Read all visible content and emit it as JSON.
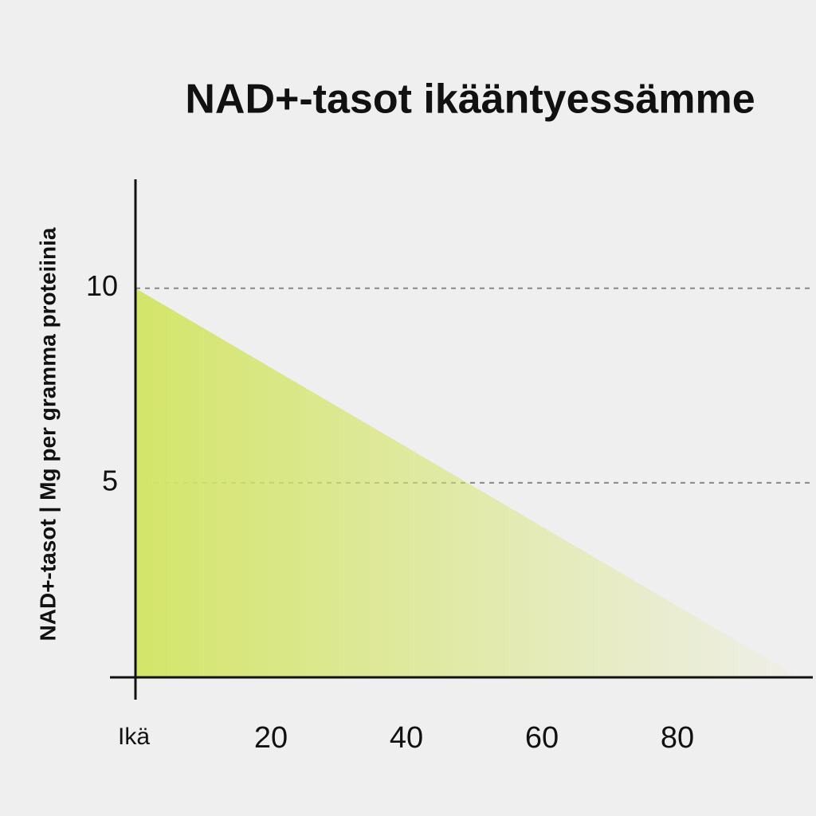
{
  "chart_data": {
    "type": "area",
    "title": "NAD+-tasot ikääntyessämme",
    "y_label": "NAD+-tasot | Mg per gramma proteiinia",
    "x_label": "Ikä",
    "x": [
      0,
      98
    ],
    "values": [
      10,
      0
    ],
    "color": "#d4e56a",
    "xlim": [
      0,
      100
    ],
    "xticks": [
      20,
      40,
      60,
      80
    ],
    "ylim": [
      0,
      12.8
    ],
    "yticks": [
      5,
      10
    ],
    "grid": true
  }
}
